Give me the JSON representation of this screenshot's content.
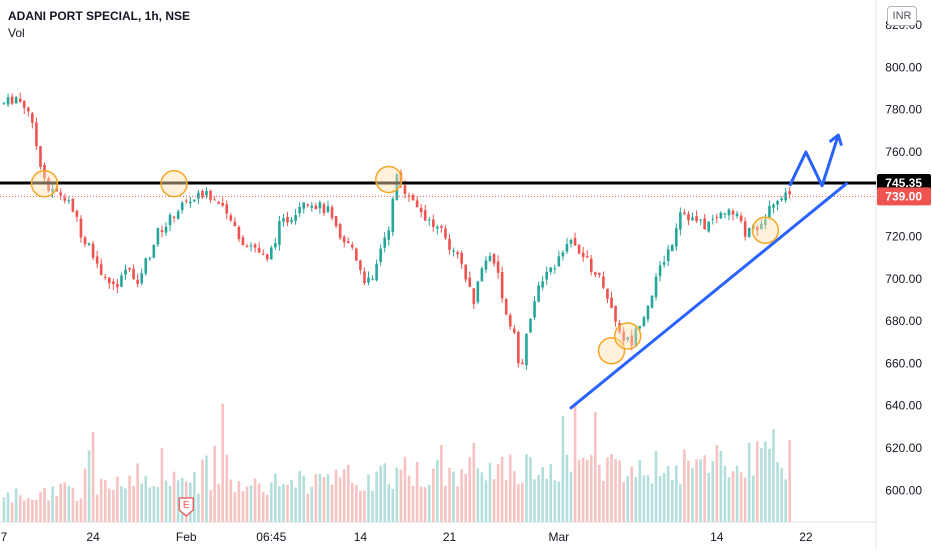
{
  "header": {
    "title": "ADANI PORT SPECIAL, 1h, NSE",
    "sub": "Vol",
    "currency": "INR"
  },
  "colors": {
    "up": "#26a69a",
    "down": "#ef5350",
    "vol_up": "#b2dfdb",
    "vol_down": "#f7c3c2",
    "resistance": "#000000",
    "trendline": "#2962ff",
    "circle_fill": "#ffe0b2",
    "circle_stroke": "#f5a623"
  },
  "chart_data": {
    "type": "candlestick",
    "ylim": [
      585,
      830
    ],
    "y_ticks": [
      600,
      620,
      640,
      660,
      680,
      700,
      720,
      740,
      760,
      780,
      800,
      820
    ],
    "y_tick_labels": [
      "600.00",
      "620.00",
      "640.00",
      "660.00",
      "680.00",
      "700.00",
      "720.00",
      "740.00",
      "760.00",
      "780.00",
      "800.00",
      "820.00"
    ],
    "x_ticks": [
      "7",
      "24",
      "Feb",
      "06:45",
      "14",
      "21",
      "Mar",
      "14",
      "22"
    ],
    "x_tick_bars": [
      0,
      22,
      45,
      66,
      88,
      110,
      137,
      176,
      198
    ],
    "bars_visible": 201,
    "bars_total": 220,
    "resistance_level": 745.35,
    "resistance_label": "745.35",
    "last_price": 739.0,
    "last_price_label": "739.00",
    "event_marker": "E",
    "event_bar": 45,
    "price_anchors": [
      [
        0,
        783
      ],
      [
        3,
        786
      ],
      [
        6,
        780
      ],
      [
        9,
        755
      ],
      [
        11,
        742
      ],
      [
        14,
        740
      ],
      [
        17,
        733
      ],
      [
        19,
        722
      ],
      [
        22,
        712
      ],
      [
        25,
        700
      ],
      [
        28,
        695
      ],
      [
        30,
        705
      ],
      [
        33,
        700
      ],
      [
        36,
        712
      ],
      [
        38,
        722
      ],
      [
        41,
        728
      ],
      [
        44,
        735
      ],
      [
        47,
        738
      ],
      [
        50,
        740
      ],
      [
        53,
        735
      ],
      [
        56,
        727
      ],
      [
        59,
        718
      ],
      [
        62,
        715
      ],
      [
        65,
        708
      ],
      [
        68,
        725
      ],
      [
        71,
        730
      ],
      [
        74,
        738
      ],
      [
        77,
        735
      ],
      [
        80,
        732
      ],
      [
        83,
        718
      ],
      [
        86,
        715
      ],
      [
        89,
        700
      ],
      [
        91,
        698
      ],
      [
        93,
        715
      ],
      [
        95,
        725
      ],
      [
        97,
        748
      ],
      [
        99,
        742
      ],
      [
        101,
        738
      ],
      [
        103,
        732
      ],
      [
        106,
        725
      ],
      [
        108,
        722
      ],
      [
        110,
        713
      ],
      [
        112,
        710
      ],
      [
        114,
        700
      ],
      [
        116,
        690
      ],
      [
        118,
        705
      ],
      [
        120,
        712
      ],
      [
        122,
        703
      ],
      [
        124,
        683
      ],
      [
        126,
        675
      ],
      [
        127,
        660
      ],
      [
        128,
        658
      ],
      [
        129,
        673
      ],
      [
        131,
        690
      ],
      [
        133,
        700
      ],
      [
        135,
        703
      ],
      [
        137,
        712
      ],
      [
        139,
        718
      ],
      [
        142,
        714
      ],
      [
        145,
        705
      ],
      [
        148,
        698
      ],
      [
        151,
        680
      ],
      [
        153,
        672
      ],
      [
        155,
        670
      ],
      [
        157,
        680
      ],
      [
        159,
        688
      ],
      [
        162,
        705
      ],
      [
        165,
        718
      ],
      [
        167,
        733
      ],
      [
        170,
        728
      ],
      [
        173,
        725
      ],
      [
        176,
        729
      ],
      [
        178,
        732
      ],
      [
        181,
        729
      ],
      [
        183,
        721
      ],
      [
        185,
        725
      ],
      [
        187,
        724
      ],
      [
        189,
        737
      ],
      [
        191,
        738
      ],
      [
        193,
        740
      ],
      [
        194,
        739
      ]
    ],
    "volume_anchors": [
      [
        0,
        0.18
      ],
      [
        40,
        0.28
      ],
      [
        90,
        0.32
      ],
      [
        127,
        0.38
      ],
      [
        160,
        0.4
      ],
      [
        194,
        0.46
      ]
    ],
    "drawings": {
      "resistance_line": {
        "price": 745.35,
        "from_bar": 0,
        "to_bar": 220
      },
      "trendline": {
        "from": [
          140,
          639
        ],
        "to": [
          208,
          745
        ]
      },
      "projection": [
        [
          194,
          744
        ],
        [
          198,
          760
        ],
        [
          202,
          744
        ],
        [
          206,
          768
        ]
      ],
      "circles": [
        {
          "bar": 10,
          "price": 745
        },
        {
          "bar": 42,
          "price": 745
        },
        {
          "bar": 95,
          "price": 747
        },
        {
          "bar": 150,
          "price": 666
        },
        {
          "bar": 154,
          "price": 673
        },
        {
          "bar": 188,
          "price": 723
        }
      ]
    }
  }
}
